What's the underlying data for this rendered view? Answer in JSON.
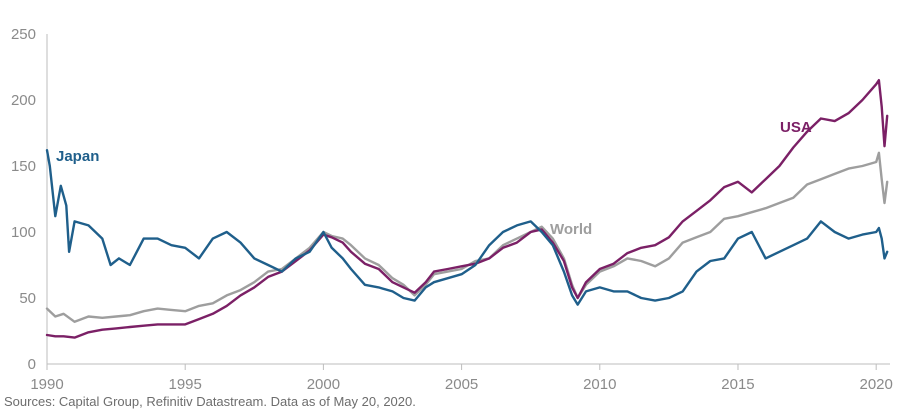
{
  "chart_data": {
    "type": "line",
    "title": "",
    "xlabel": "",
    "ylabel": "",
    "xlim": [
      1990,
      2020.5
    ],
    "ylim": [
      0,
      250
    ],
    "x_ticks": [
      "1990",
      "1995",
      "2000",
      "2005",
      "2010",
      "2015",
      "2020"
    ],
    "y_ticks": [
      "0",
      "50",
      "100",
      "150",
      "200",
      "250"
    ],
    "grid": false,
    "series": [
      {
        "name": "World",
        "color": "#9e9e9e",
        "x": [
          1990.0,
          1990.3,
          1990.6,
          1991.0,
          1991.5,
          1992.0,
          1992.5,
          1993.0,
          1993.5,
          1994.0,
          1994.5,
          1995.0,
          1995.5,
          1996.0,
          1996.5,
          1997.0,
          1997.5,
          1998.0,
          1998.5,
          1999.0,
          1999.5,
          2000.0,
          2000.3,
          2000.7,
          2001.0,
          2001.5,
          2002.0,
          2002.5,
          2002.9,
          2003.3,
          2003.7,
          2004.0,
          2004.5,
          2005.0,
          2005.5,
          2006.0,
          2006.5,
          2007.0,
          2007.5,
          2007.9,
          2008.3,
          2008.7,
          2009.0,
          2009.2,
          2009.5,
          2010.0,
          2010.5,
          2011.0,
          2011.5,
          2012.0,
          2012.5,
          2013.0,
          2013.5,
          2014.0,
          2014.5,
          2015.0,
          2015.5,
          2016.0,
          2016.5,
          2017.0,
          2017.5,
          2018.0,
          2018.5,
          2019.0,
          2019.5,
          2020.0,
          2020.1,
          2020.2,
          2020.3,
          2020.4
        ],
        "values": [
          42,
          36,
          38,
          32,
          36,
          35,
          36,
          37,
          40,
          42,
          41,
          40,
          44,
          46,
          52,
          56,
          62,
          70,
          72,
          80,
          88,
          100,
          97,
          95,
          90,
          80,
          75,
          65,
          60,
          52,
          60,
          68,
          70,
          72,
          78,
          80,
          90,
          95,
          100,
          104,
          95,
          80,
          60,
          50,
          60,
          70,
          74,
          80,
          78,
          74,
          80,
          92,
          96,
          100,
          110,
          112,
          115,
          118,
          122,
          126,
          136,
          140,
          144,
          148,
          150,
          153,
          160,
          140,
          122,
          138
        ]
      },
      {
        "name": "USA",
        "color": "#7b2066",
        "x": [
          1990.0,
          1990.3,
          1990.6,
          1991.0,
          1991.5,
          1992.0,
          1992.5,
          1993.0,
          1993.5,
          1994.0,
          1994.5,
          1995.0,
          1995.5,
          1996.0,
          1996.5,
          1997.0,
          1997.5,
          1998.0,
          1998.5,
          1999.0,
          1999.5,
          2000.0,
          2000.3,
          2000.7,
          2001.0,
          2001.5,
          2002.0,
          2002.5,
          2002.9,
          2003.3,
          2003.7,
          2004.0,
          2004.5,
          2005.0,
          2005.5,
          2006.0,
          2006.5,
          2007.0,
          2007.5,
          2007.9,
          2008.3,
          2008.7,
          2009.0,
          2009.2,
          2009.5,
          2010.0,
          2010.5,
          2011.0,
          2011.5,
          2012.0,
          2012.5,
          2013.0,
          2013.5,
          2014.0,
          2014.5,
          2015.0,
          2015.5,
          2016.0,
          2016.5,
          2017.0,
          2017.5,
          2018.0,
          2018.5,
          2019.0,
          2019.5,
          2020.0,
          2020.1,
          2020.2,
          2020.3,
          2020.4
        ],
        "values": [
          22,
          21,
          21,
          20,
          24,
          26,
          27,
          28,
          29,
          30,
          30,
          30,
          34,
          38,
          44,
          52,
          58,
          66,
          70,
          78,
          86,
          98,
          96,
          92,
          85,
          76,
          72,
          62,
          58,
          54,
          62,
          70,
          72,
          74,
          76,
          80,
          88,
          92,
          100,
          102,
          92,
          78,
          58,
          50,
          62,
          72,
          76,
          84,
          88,
          90,
          96,
          108,
          116,
          124,
          134,
          138,
          130,
          140,
          150,
          164,
          176,
          186,
          184,
          190,
          200,
          212,
          215,
          195,
          165,
          188
        ]
      },
      {
        "name": "Japan",
        "color": "#1f5f8b",
        "x": [
          1990.0,
          1990.1,
          1990.3,
          1990.5,
          1990.7,
          1990.8,
          1991.0,
          1991.5,
          1992.0,
          1992.3,
          1992.6,
          1993.0,
          1993.5,
          1994.0,
          1994.5,
          1995.0,
          1995.5,
          1996.0,
          1996.5,
          1997.0,
          1997.5,
          1998.0,
          1998.5,
          1999.0,
          1999.5,
          2000.0,
          2000.3,
          2000.7,
          2001.0,
          2001.5,
          2002.0,
          2002.5,
          2002.9,
          2003.3,
          2003.7,
          2004.0,
          2004.5,
          2005.0,
          2005.5,
          2006.0,
          2006.5,
          2007.0,
          2007.5,
          2007.9,
          2008.3,
          2008.7,
          2009.0,
          2009.2,
          2009.5,
          2010.0,
          2010.5,
          2011.0,
          2011.5,
          2012.0,
          2012.5,
          2013.0,
          2013.5,
          2014.0,
          2014.5,
          2015.0,
          2015.5,
          2016.0,
          2016.5,
          2017.0,
          2017.5,
          2018.0,
          2018.5,
          2019.0,
          2019.5,
          2020.0,
          2020.1,
          2020.2,
          2020.3,
          2020.4
        ],
        "values": [
          162,
          150,
          112,
          135,
          120,
          85,
          108,
          105,
          95,
          75,
          80,
          75,
          95,
          95,
          90,
          88,
          80,
          95,
          100,
          92,
          80,
          75,
          70,
          80,
          85,
          100,
          88,
          80,
          72,
          60,
          58,
          55,
          50,
          48,
          58,
          62,
          65,
          68,
          75,
          90,
          100,
          105,
          108,
          100,
          90,
          70,
          52,
          45,
          55,
          58,
          55,
          55,
          50,
          48,
          50,
          55,
          70,
          78,
          80,
          95,
          100,
          80,
          85,
          90,
          95,
          108,
          100,
          95,
          98,
          100,
          103,
          95,
          80,
          85
        ]
      }
    ],
    "annotations": [
      "Japan",
      "USA",
      "World"
    ]
  },
  "footnote": "Sources: Capital Group, Refinitiv Datastream. Data as of May 20, 2020."
}
